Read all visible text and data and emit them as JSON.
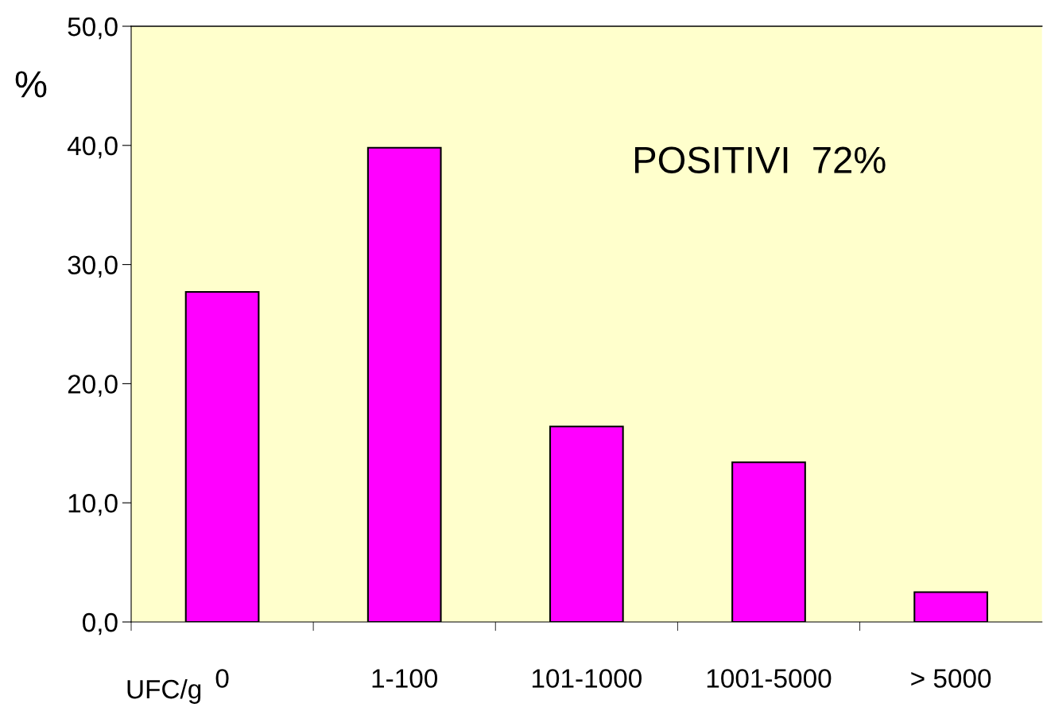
{
  "chart_data": {
    "type": "bar",
    "xlabel": "UFC/g",
    "ylabel": "%",
    "categories": [
      "0",
      "1-100",
      "101-1000",
      "1001-5000",
      "> 5000"
    ],
    "values": [
      27.7,
      39.8,
      16.4,
      13.4,
      2.5
    ],
    "color": "#ff00ff",
    "ylim": [
      0,
      50
    ],
    "yticks": [
      {
        "value": 0,
        "label": "0,0"
      },
      {
        "value": 10,
        "label": "10,0"
      },
      {
        "value": 20,
        "label": "20,0"
      },
      {
        "value": 30,
        "label": "30,0"
      },
      {
        "value": 40,
        "label": "40,0"
      },
      {
        "value": 50,
        "label": "50,0"
      }
    ],
    "annotations": [
      "POSITIVI  72%"
    ],
    "grid": false,
    "legend": false
  }
}
